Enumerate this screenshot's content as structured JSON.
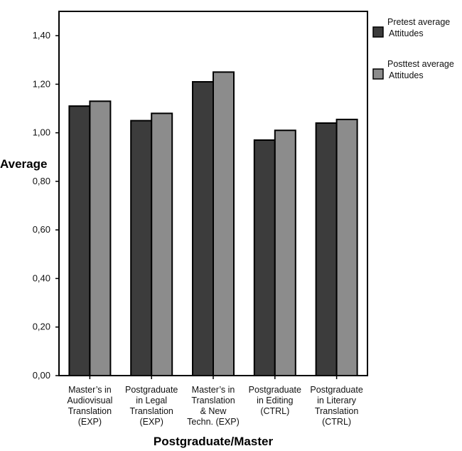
{
  "chart_data": {
    "type": "bar",
    "title": "",
    "xlabel": "Postgraduate/Master",
    "ylabel": "Average",
    "ylim": [
      0,
      1.5
    ],
    "yticks": [
      "0,00",
      "0,20",
      "0,40",
      "0,60",
      "0,80",
      "1,00",
      "1,20",
      "1,40"
    ],
    "ytick_values": [
      0,
      0.2,
      0.4,
      0.6,
      0.8,
      1.0,
      1.2,
      1.4
    ],
    "grid": false,
    "legend_position": "right",
    "categories": [
      [
        "Master’s in",
        "Audiovisual",
        "Translation",
        "(EXP)"
      ],
      [
        "Postgraduate",
        "in Legal",
        "Translation",
        "(EXP)"
      ],
      [
        "Master’s in",
        "Translation",
        "& New",
        "Techn. (EXP)"
      ],
      [
        "Postgraduate",
        "in Editing",
        "(CTRL)"
      ],
      [
        "Postgraduate",
        "in Literary",
        "Translation",
        "(CTRL)"
      ]
    ],
    "series": [
      {
        "name": [
          "Pretest average",
          "Attitudes"
        ],
        "color": "#3c3c3c",
        "values": [
          1.11,
          1.05,
          1.21,
          0.97,
          1.04
        ]
      },
      {
        "name": [
          "Posttest average",
          "Attitudes"
        ],
        "color": "#8c8c8c",
        "values": [
          1.13,
          1.08,
          1.25,
          1.01,
          1.055
        ]
      }
    ]
  }
}
